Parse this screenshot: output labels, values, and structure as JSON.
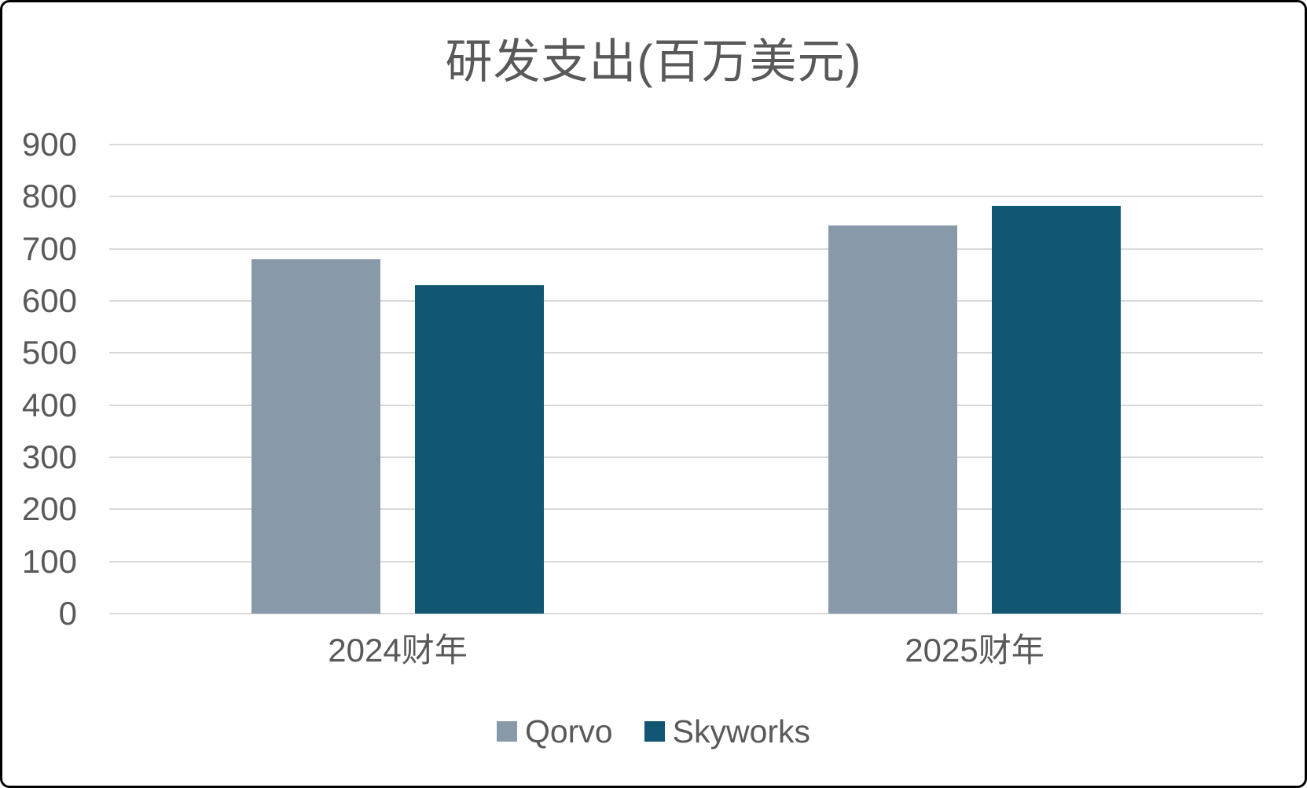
{
  "chart_data": {
    "type": "bar",
    "title": "研发支出(百万美元)",
    "categories": [
      "2024财年",
      "2025财年"
    ],
    "series": [
      {
        "name": "Qorvo",
        "color": "#8899A9",
        "values": [
          680,
          745
        ]
      },
      {
        "name": "Skyworks",
        "color": "#115672",
        "values": [
          630,
          783
        ]
      }
    ],
    "ylim": [
      0,
      900
    ],
    "yticks": [
      0,
      100,
      200,
      300,
      400,
      500,
      600,
      700,
      800,
      900
    ],
    "xlabel": "",
    "ylabel": "",
    "grid": true,
    "legend_position": "bottom",
    "style": {
      "text_color": "#595959",
      "gridline_color": "#D9D9D9",
      "axis_line_color": "#D9D9D9",
      "background": "#FFFFFF",
      "frame_border_color": "#000000"
    }
  }
}
